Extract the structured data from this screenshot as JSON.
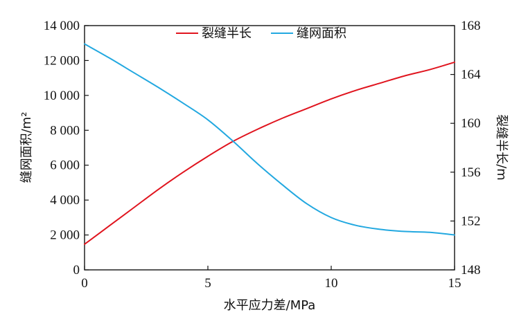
{
  "chart_data": {
    "type": "line",
    "title": "",
    "xlabel": "水平应力差/MPa",
    "ylabel_left": "缝网面积/m²",
    "ylabel_right": "裂缝半长/m",
    "xlim": [
      0,
      15
    ],
    "ylim_left": [
      0,
      14000
    ],
    "ylim_right": [
      148,
      168
    ],
    "x_ticks": [
      0,
      5,
      10,
      15
    ],
    "x_tick_labels": [
      "0",
      "5",
      "10",
      "15"
    ],
    "y_left_ticks": [
      0,
      2000,
      4000,
      6000,
      8000,
      10000,
      12000,
      14000
    ],
    "y_left_tick_labels": [
      "0",
      "2 000",
      "4 000",
      "6 000",
      "8 000",
      "10 000",
      "12 000",
      "14 000"
    ],
    "y_right_ticks": [
      148,
      152,
      156,
      160,
      164,
      168
    ],
    "y_right_tick_labels": [
      "148",
      "152",
      "156",
      "160",
      "164",
      "168"
    ],
    "grid": false,
    "legend_position": "top-center",
    "series": [
      {
        "name": "裂缝半长",
        "axis": "right",
        "color": "#e0141e",
        "x": [
          0,
          1,
          2,
          3,
          4,
          5,
          6,
          7,
          8,
          9,
          10,
          11,
          12,
          13,
          14,
          15
        ],
        "values": [
          150.1,
          151.6,
          153.1,
          154.6,
          156.0,
          157.3,
          158.5,
          159.5,
          160.4,
          161.2,
          162.0,
          162.7,
          163.3,
          163.9,
          164.4,
          165.0
        ]
      },
      {
        "name": "缝网面积",
        "axis": "left",
        "color": "#22a8e0",
        "x": [
          0,
          1,
          2,
          3,
          4,
          5,
          6,
          7,
          8,
          9,
          10,
          11,
          12,
          13,
          14,
          15
        ],
        "values": [
          12950,
          12150,
          11300,
          10450,
          9550,
          8600,
          7400,
          6100,
          4900,
          3800,
          3000,
          2550,
          2320,
          2200,
          2150,
          2000
        ]
      }
    ]
  }
}
